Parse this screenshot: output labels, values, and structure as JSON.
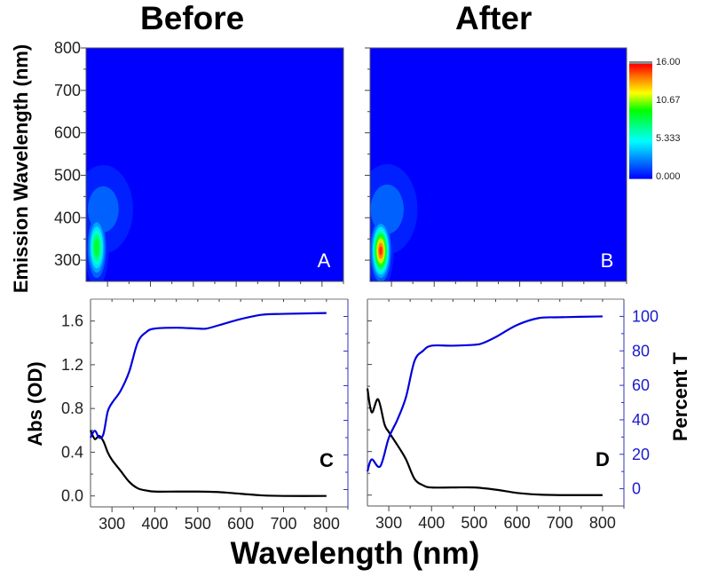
{
  "titles": {
    "before": "Before",
    "after": "After"
  },
  "shared_labels": {
    "x": "Wavelength (nm)",
    "emission_y": "Emission Wavelength (nm)",
    "abs_y": "Abs (OD)",
    "percent_y": "Percent T"
  },
  "colors": {
    "abs": "#000000",
    "percent_t": "#0000dd",
    "heatmap_background": "#0000ff"
  },
  "chart_data": [
    {
      "panel": "A",
      "type": "heatmap",
      "xlim": [
        250,
        850
      ],
      "ylim": [
        250,
        800
      ],
      "yticks": [
        300,
        400,
        500,
        600,
        700,
        800
      ],
      "colorscale": {
        "min": 0,
        "max": 16,
        "colors": [
          "#0000ff",
          "#00ffff",
          "#00ff00",
          "#ffff00",
          "#ff8000",
          "#ff0000"
        ]
      },
      "peaks": [
        {
          "excitation": 275,
          "emission": 330,
          "intensity": 10,
          "spread_ex": 12,
          "spread_em": 40
        },
        {
          "excitation": 290,
          "emission": 420,
          "intensity": 3,
          "spread_ex": 40,
          "spread_em": 60
        }
      ]
    },
    {
      "panel": "B",
      "type": "heatmap",
      "xlim": [
        250,
        850
      ],
      "ylim": [
        250,
        800
      ],
      "colorscale": {
        "min": 0,
        "max": 16,
        "colors": [
          "#0000ff",
          "#00ffff",
          "#00ff00",
          "#ffff00",
          "#ff8000",
          "#ff0000"
        ]
      },
      "colorbar_ticks": [
        "16.00",
        "10.67",
        "5.333",
        "0.000"
      ],
      "peaks": [
        {
          "excitation": 275,
          "emission": 322,
          "intensity": 16,
          "spread_ex": 12,
          "spread_em": 36
        },
        {
          "excitation": 290,
          "emission": 420,
          "intensity": 3.2,
          "spread_ex": 40,
          "spread_em": 60
        }
      ]
    },
    {
      "panel": "C",
      "type": "line",
      "xlim": [
        250,
        850
      ],
      "ylim": [
        -0.1,
        1.8
      ],
      "y2lim": [
        -10,
        110
      ],
      "xticks": [
        300,
        400,
        500,
        600,
        700,
        800
      ],
      "yticks": [
        "0.0",
        "0.4",
        "0.8",
        "1.2",
        "1.6"
      ],
      "series": [
        {
          "axis": "left",
          "x": [
            250,
            260,
            270,
            280,
            290,
            300,
            320,
            340,
            360,
            380,
            400,
            450,
            500,
            550,
            600,
            650,
            700,
            800
          ],
          "y": [
            0.6,
            0.52,
            0.55,
            0.5,
            0.4,
            0.33,
            0.23,
            0.13,
            0.07,
            0.05,
            0.04,
            0.04,
            0.04,
            0.035,
            0.02,
            0.005,
            0,
            0
          ]
        },
        {
          "axis": "right",
          "x": [
            250,
            260,
            270,
            280,
            290,
            300,
            320,
            340,
            360,
            380,
            400,
            450,
            500,
            520,
            550,
            600,
            650,
            700,
            800
          ],
          "y": [
            30,
            34,
            30,
            32,
            45,
            50,
            57,
            68,
            85,
            91,
            93,
            93.5,
            93,
            93,
            95,
            98.5,
            101,
            101.5,
            102
          ]
        }
      ]
    },
    {
      "panel": "D",
      "type": "line",
      "xlim": [
        250,
        850
      ],
      "ylim": [
        -0.1,
        1.8
      ],
      "y2lim": [
        -10,
        110
      ],
      "xticks": [
        300,
        400,
        500,
        600,
        700,
        800
      ],
      "y2ticks": [
        "0",
        "20",
        "40",
        "60",
        "80",
        "100"
      ],
      "series": [
        {
          "axis": "left",
          "x": [
            250,
            260,
            275,
            290,
            300,
            320,
            340,
            360,
            380,
            400,
            450,
            500,
            550,
            600,
            650,
            700,
            800
          ],
          "y": [
            0.98,
            0.76,
            0.88,
            0.65,
            0.58,
            0.46,
            0.33,
            0.15,
            0.09,
            0.07,
            0.07,
            0.07,
            0.05,
            0.02,
            0.005,
            0,
            0
          ]
        },
        {
          "axis": "right",
          "x": [
            250,
            260,
            280,
            300,
            320,
            340,
            360,
            380,
            400,
            450,
            500,
            520,
            550,
            600,
            650,
            700,
            800
          ],
          "y": [
            10,
            17,
            13,
            29.5,
            40,
            53,
            74,
            80,
            83,
            83,
            83.5,
            84.5,
            88,
            95,
            99,
            99.5,
            100
          ]
        }
      ]
    }
  ]
}
